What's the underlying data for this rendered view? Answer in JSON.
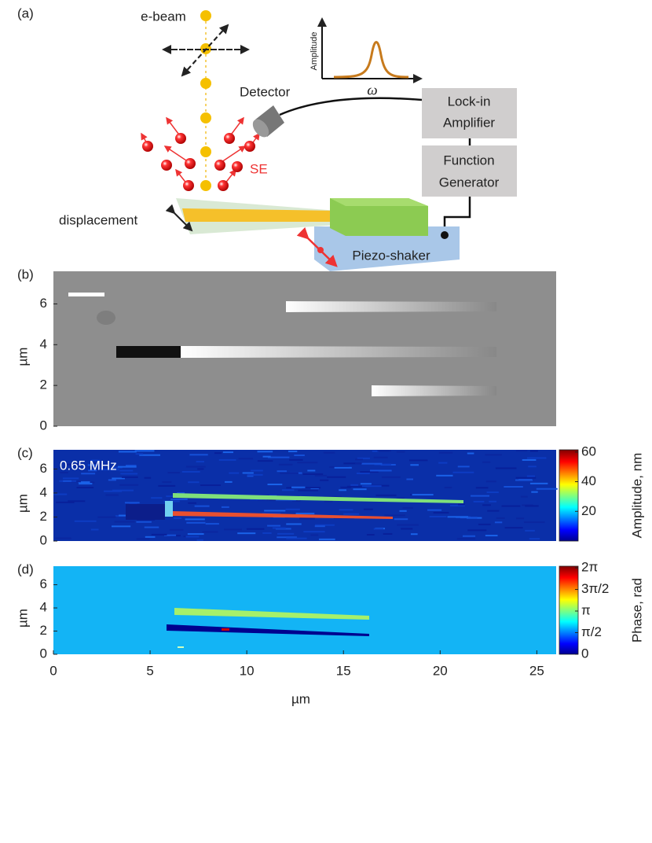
{
  "panel_a": {
    "label": "(a)",
    "ebeam": "e-beam",
    "detector": "Detector",
    "se": "SE",
    "displacement": "displacement",
    "lockin": [
      "Lock-in",
      "Amplifier"
    ],
    "function_generator": [
      "Function",
      "Generator"
    ],
    "piezo": "Piezo-shaker",
    "inset_ylabel": "Amplitude",
    "inset_xlabel": "ω"
  },
  "panel_b": {
    "label": "(b)",
    "ylabel": "µm",
    "ylim": [
      0,
      7.6
    ],
    "yticks": [
      0,
      2,
      4,
      6
    ]
  },
  "panel_c": {
    "label": "(c)",
    "annotation": "0.65 MHz",
    "ylabel": "µm",
    "ylim": [
      0,
      7.6
    ],
    "yticks": [
      0,
      2,
      4,
      6
    ],
    "colorbar": {
      "label": "Amplitude, nm",
      "lim": [
        0,
        61.5
      ],
      "ticks": [
        20,
        40,
        60
      ]
    }
  },
  "panel_d": {
    "label": "(d)",
    "ylabel": "µm",
    "ylim": [
      0,
      7.6
    ],
    "yticks": [
      0,
      2,
      4,
      6
    ],
    "xlabel": "µm",
    "xlim": [
      0,
      26
    ],
    "xticks": [
      0,
      5,
      10,
      15,
      20,
      25
    ],
    "colorbar": {
      "label": "Phase, rad",
      "lim": [
        0,
        6.4
      ],
      "ticks": [
        0,
        {
          "value": 1.5708,
          "label": "π/2"
        },
        {
          "value": 3.1416,
          "label": "π"
        },
        {
          "value": 4.7124,
          "label": "3π/2"
        },
        {
          "value": 6.2832,
          "label": "2π"
        }
      ]
    }
  }
}
